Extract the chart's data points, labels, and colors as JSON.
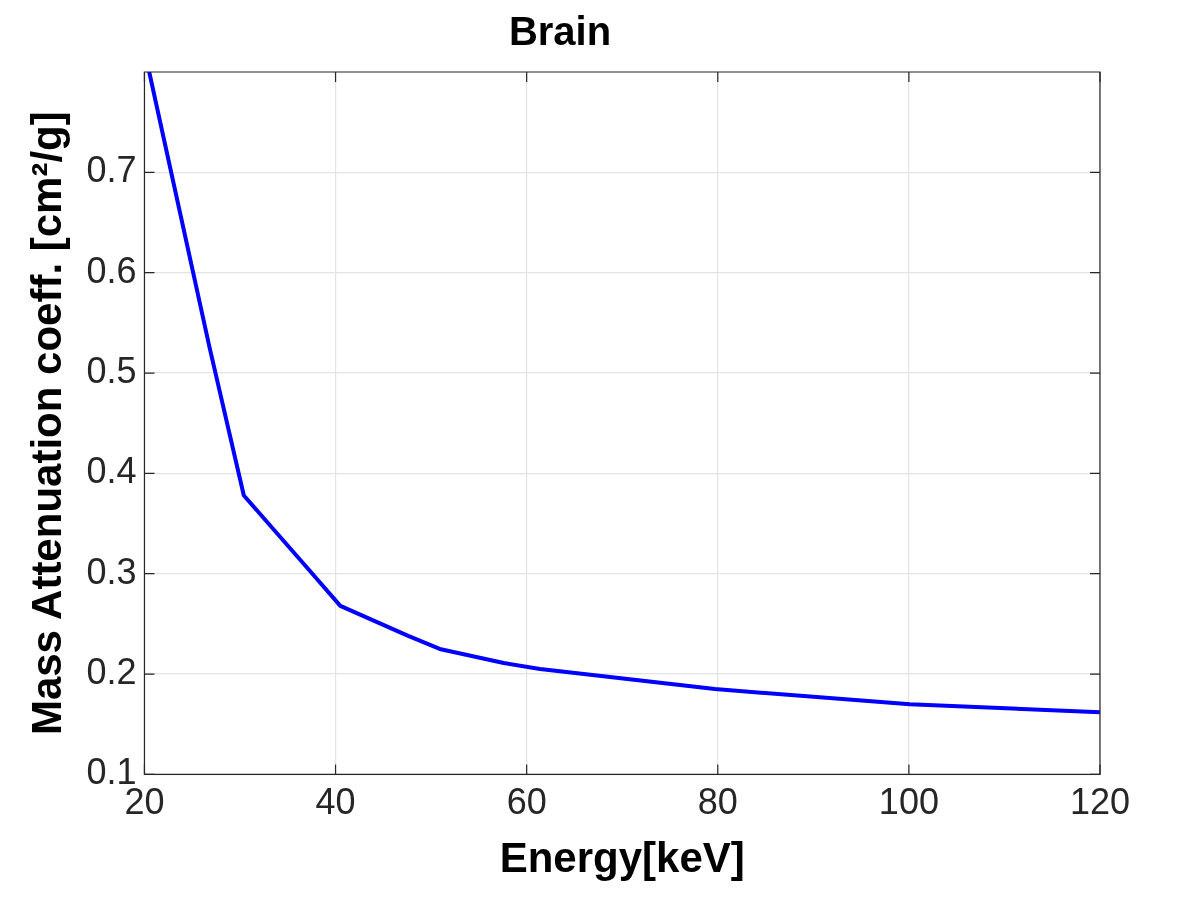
{
  "chart_data": {
    "type": "line",
    "title": "Brain",
    "xlabel": "Energy[keV]",
    "ylabel": "Mass Attenuation coeff. [cm²/g]",
    "x": [
      20.5,
      26.8,
      30.4,
      37.3,
      40.5,
      47.6,
      50.9,
      57.6,
      61.4,
      79.7,
      100.1,
      120
    ],
    "series": [
      {
        "color": "#0000ff",
        "values": [
          0.8,
          0.526,
          0.378,
          0.303,
          0.268,
          0.238,
          0.225,
          0.211,
          0.205,
          0.185,
          0.17,
          0.162
        ]
      }
    ],
    "xlim": [
      20,
      120
    ],
    "xticks": [
      20,
      40,
      60,
      80,
      100,
      120
    ],
    "ylim": [
      0.1,
      0.8
    ],
    "yticks": [
      0.1,
      0.2,
      0.3,
      0.4,
      0.5,
      0.6,
      0.7
    ],
    "grid": true,
    "legend": false,
    "marker": "none",
    "line_style": "solid"
  }
}
